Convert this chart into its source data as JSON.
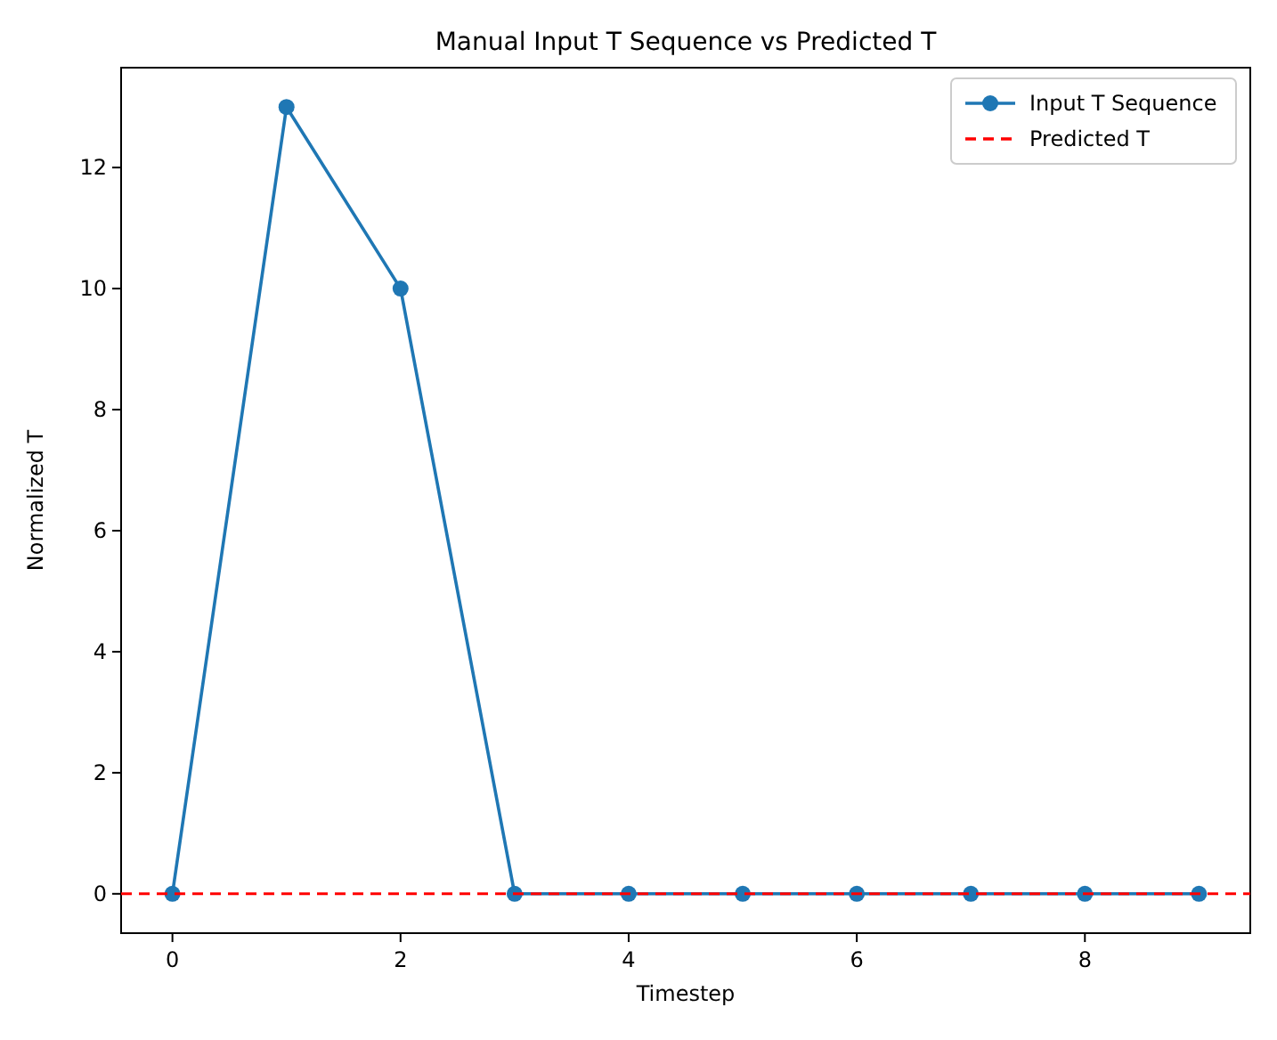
{
  "chart_data": {
    "type": "line",
    "title": "Manual Input T Sequence vs Predicted T",
    "xlabel": "Timestep",
    "ylabel": "Normalized T",
    "x": [
      0,
      1,
      2,
      3,
      4,
      5,
      6,
      7,
      8,
      9
    ],
    "series": [
      {
        "name": "Input T Sequence",
        "color": "#1f77b4",
        "values": [
          0,
          13,
          10,
          0,
          0,
          0,
          0,
          0,
          0,
          0
        ]
      }
    ],
    "ref_lines": [
      {
        "axis": "y",
        "value": 0,
        "label": "Predicted T",
        "color": "#ff0000",
        "line_style": "dashed"
      }
    ],
    "xlim": [
      -0.45,
      9.45
    ],
    "xticks": [
      0,
      2,
      4,
      6,
      8
    ],
    "ylim": [
      -0.65,
      13.65
    ],
    "yticks": [
      0,
      2,
      4,
      6,
      8,
      10,
      12
    ],
    "marker": "circle",
    "legend": "top right",
    "grid": false
  }
}
